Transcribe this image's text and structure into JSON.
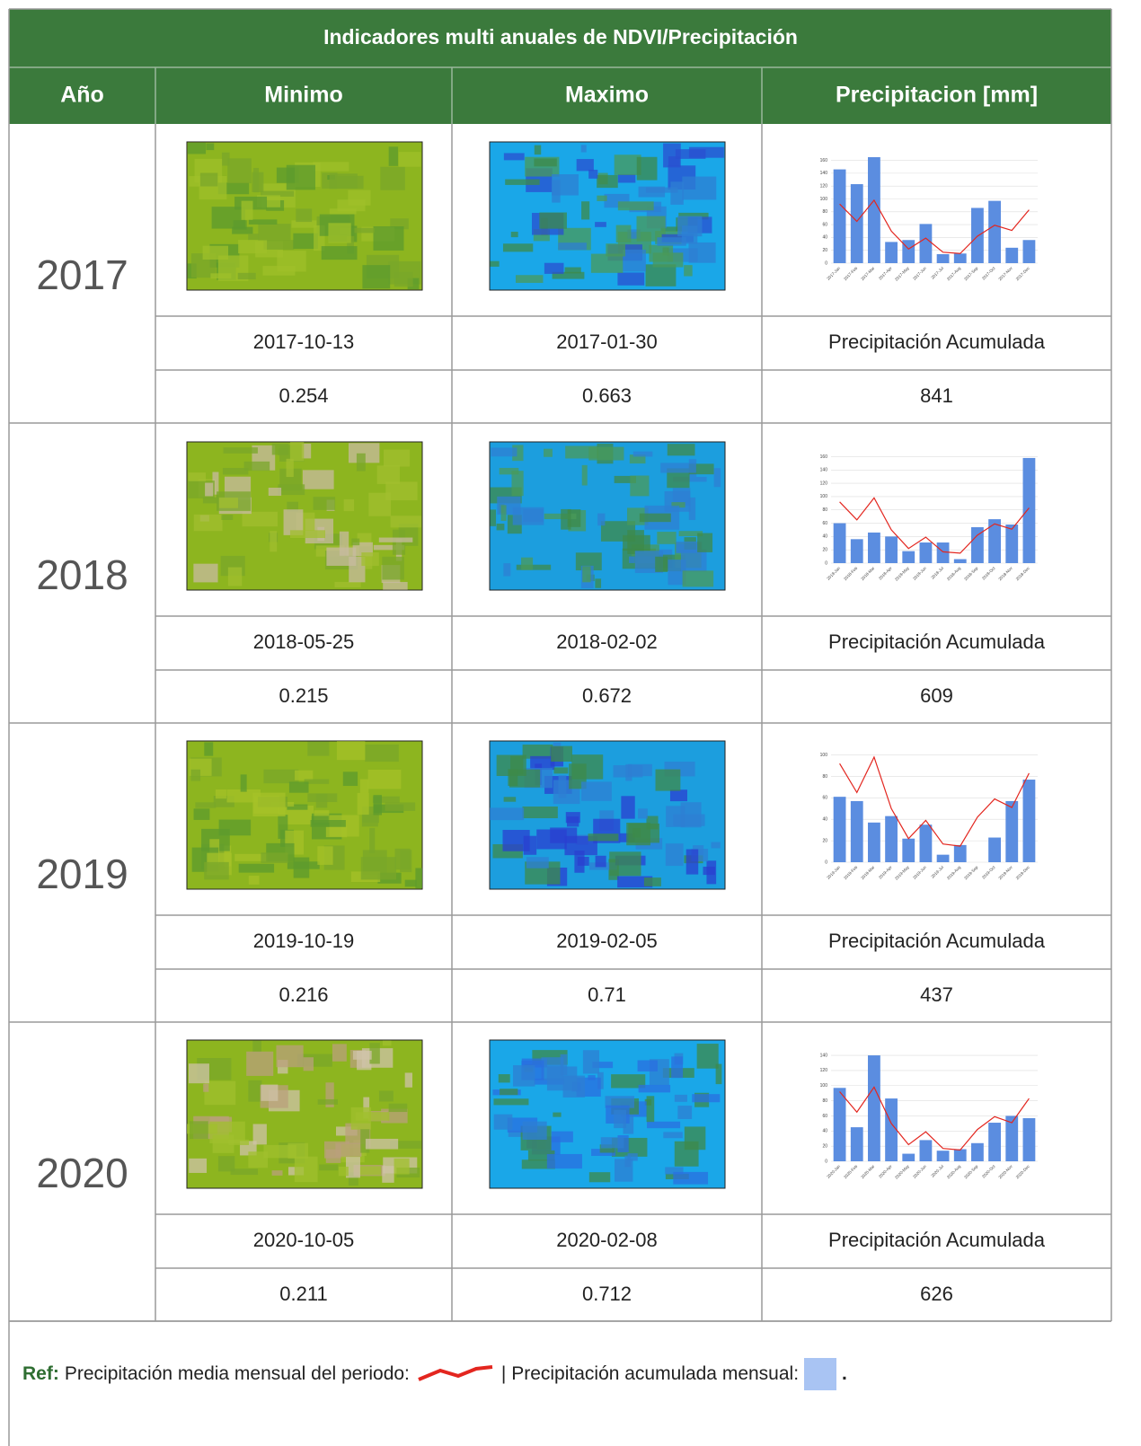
{
  "header": {
    "title": "Indicadores multi anuales de NDVI/Precipitación"
  },
  "table": {
    "columns": [
      "Año",
      "Minimo",
      "Maximo",
      "Precipitacion [mm]"
    ],
    "rows": [
      {
        "year": "2017",
        "min_date": "2017-10-13",
        "max_date": "2017-01-30",
        "precip_label": "Precipitación Acumulada",
        "min_value": 0.254,
        "max_value": 0.663,
        "precip_total": 841,
        "chart": {
          "type": "bar",
          "categories": [
            "2017-Jan",
            "2017-Feb",
            "2017-Mar",
            "2017-Apr",
            "2017-May",
            "2017-Jun",
            "2017-Jul",
            "2017-Aug",
            "2017-Sep",
            "2017-Oct",
            "2017-Nov",
            "2017-Dec"
          ],
          "series": [
            {
              "type": "bar",
              "color": "#5b8de0",
              "values": [
                146,
                123,
                165,
                33,
                36,
                61,
                14,
                15,
                86,
                97,
                24,
                36
              ]
            },
            {
              "type": "line",
              "color": "#e3261f",
              "values": [
                92,
                65,
                98,
                50,
                22,
                39,
                17,
                15,
                42,
                59,
                51,
                83
              ]
            }
          ],
          "ylim": [
            0,
            172
          ],
          "yticks": [
            0,
            20,
            40,
            60,
            80,
            100,
            120,
            140,
            160
          ],
          "grid": true
        }
      },
      {
        "year": "2018",
        "min_date": "2018-05-25",
        "max_date": "2018-02-02",
        "precip_label": "Precipitación Acumulada",
        "min_value": 0.215,
        "max_value": 0.672,
        "precip_total": 609,
        "chart": {
          "type": "bar",
          "categories": [
            "2018-Jan",
            "2018-Feb",
            "2018-Mar",
            "2018-Apr",
            "2018-May",
            "2018-Jun",
            "2018-Jul",
            "2018-Aug",
            "2018-Sep",
            "2018-Oct",
            "2018-Nov",
            "2018-Dec"
          ],
          "series": [
            {
              "type": "bar",
              "color": "#5b8de0",
              "values": [
                60,
                36,
                46,
                40,
                18,
                31,
                31,
                6,
                54,
                66,
                58,
                158
              ]
            },
            {
              "type": "line",
              "color": "#e3261f",
              "values": [
                92,
                65,
                98,
                50,
                22,
                39,
                17,
                15,
                42,
                59,
                51,
                83
              ]
            }
          ],
          "ylim": [
            0,
            166
          ],
          "yticks": [
            0,
            20,
            40,
            60,
            80,
            100,
            120,
            140,
            160
          ],
          "grid": true
        }
      },
      {
        "year": "2019",
        "min_date": "2019-10-19",
        "max_date": "2019-02-05",
        "precip_label": "Precipitación Acumulada",
        "min_value": 0.216,
        "max_value": 0.71,
        "precip_total": 437,
        "chart": {
          "type": "bar",
          "categories": [
            "2019-Jan",
            "2019-Feb",
            "2019-Mar",
            "2019-Apr",
            "2019-May",
            "2019-Jun",
            "2019-Jul",
            "2019-Aug",
            "2019-Sep",
            "2019-Oct",
            "2019-Nov",
            "2019-Dec"
          ],
          "series": [
            {
              "type": "bar",
              "color": "#5b8de0",
              "values": [
                61,
                57,
                37,
                43,
                22,
                35,
                7,
                16,
                0,
                23,
                57,
                77
              ]
            },
            {
              "type": "line",
              "color": "#e3261f",
              "values": [
                92,
                65,
                98,
                50,
                22,
                39,
                17,
                15,
                42,
                59,
                51,
                83
              ]
            }
          ],
          "ylim": [
            0,
            103
          ],
          "yticks": [
            0,
            20,
            40,
            60,
            80,
            100
          ],
          "grid": true
        }
      },
      {
        "year": "2020",
        "min_date": "2020-10-05",
        "max_date": "2020-02-08",
        "precip_label": "Precipitación Acumulada",
        "min_value": 0.211,
        "max_value": 0.712,
        "precip_total": 626,
        "chart": {
          "type": "bar",
          "categories": [
            "2020-Jan",
            "2020-Feb",
            "2020-Mar",
            "2020-Apr",
            "2020-May",
            "2020-Jun",
            "2020-Jul",
            "2020-Aug",
            "2020-Sep",
            "2020-Oct",
            "2020-Nov",
            "2020-Dec"
          ],
          "series": [
            {
              "type": "bar",
              "color": "#5b8de0",
              "values": [
                97,
                45,
                140,
                83,
                10,
                28,
                14,
                16,
                24,
                51,
                60,
                57
              ]
            },
            {
              "type": "line",
              "color": "#e3261f",
              "values": [
                92,
                65,
                98,
                50,
                22,
                39,
                17,
                15,
                42,
                59,
                51,
                83
              ]
            }
          ],
          "ylim": [
            0,
            146
          ],
          "yticks": [
            0,
            20,
            40,
            60,
            80,
            100,
            120,
            140
          ],
          "grid": true
        }
      }
    ]
  },
  "footer": {
    "ref_label": "Ref:",
    "line_text": "Precipitación media mensual del periodo:",
    "bar_text": "| Precipitación acumulada mensual:",
    "end": "."
  }
}
